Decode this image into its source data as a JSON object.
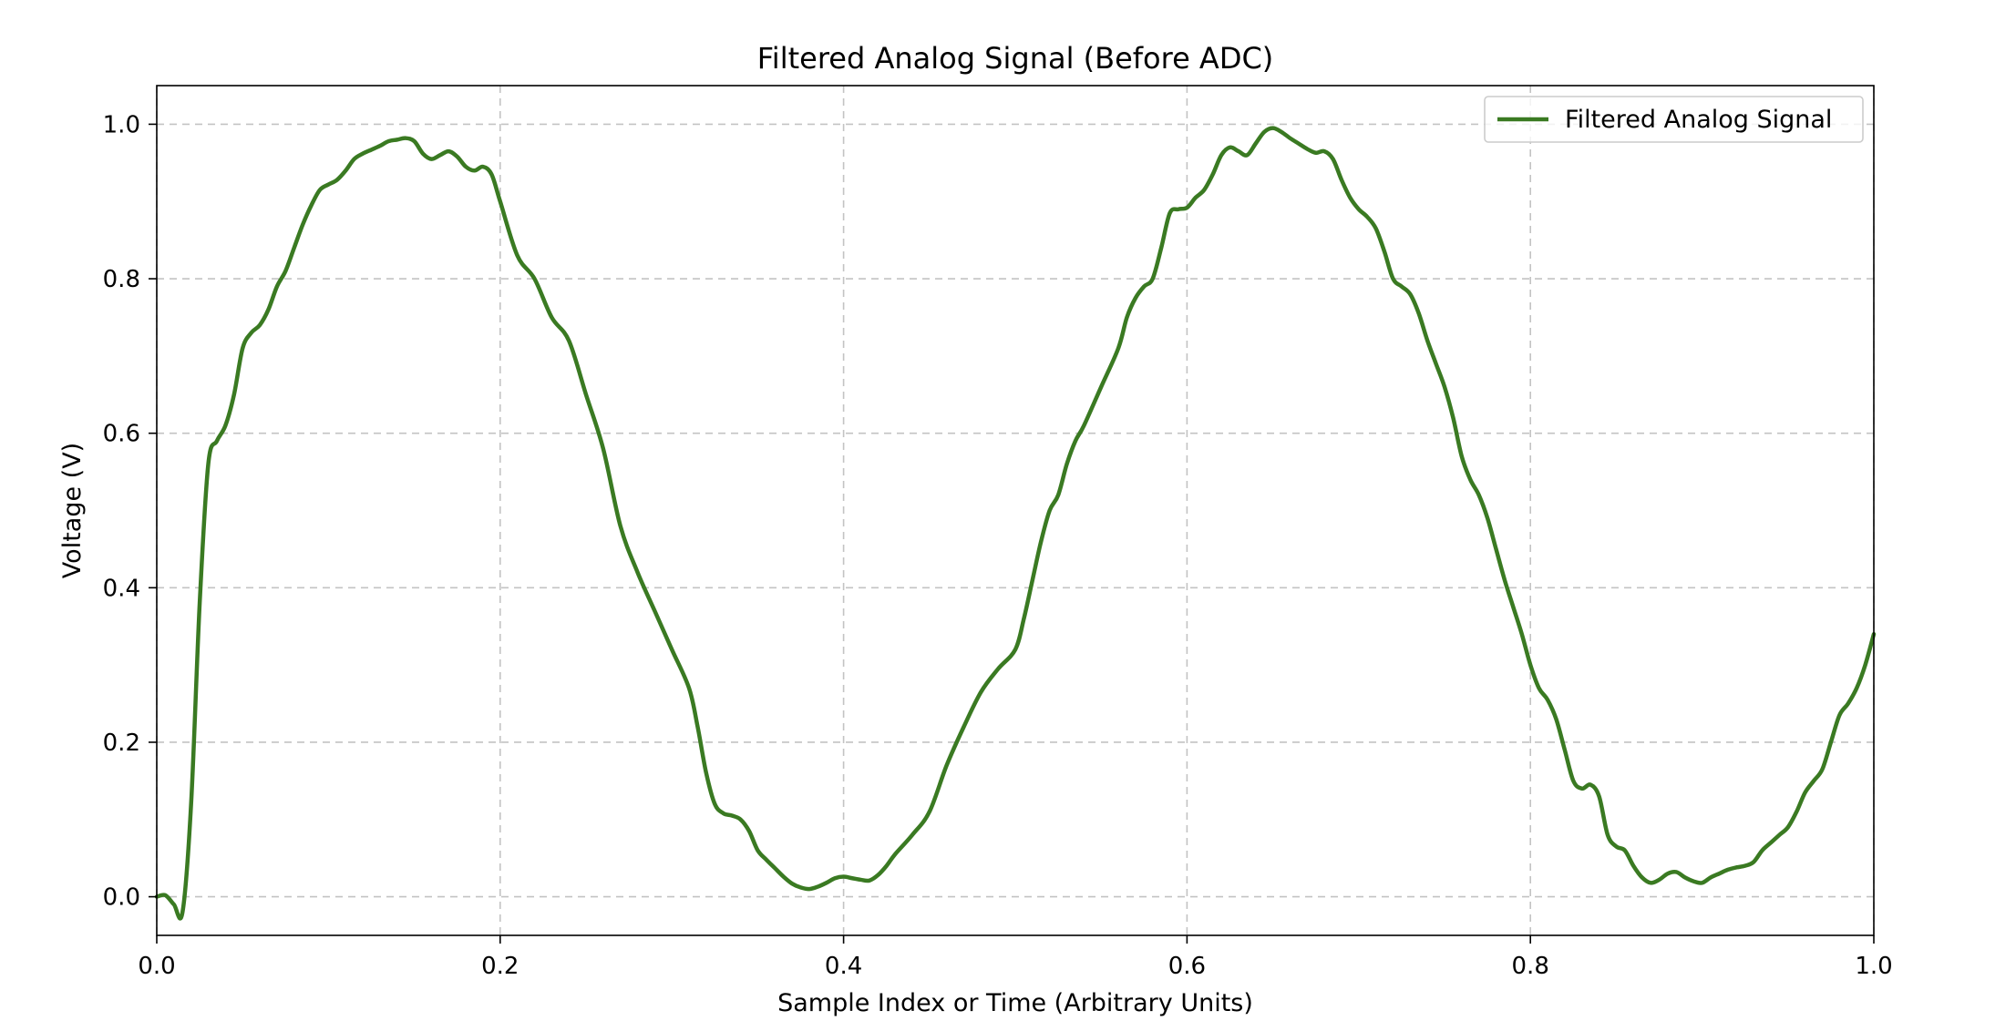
{
  "chart_data": {
    "type": "line",
    "title": "Filtered Analog Signal (Before ADC)",
    "xlabel": "Sample Index or Time (Arbitrary Units)",
    "ylabel": "Voltage (V)",
    "xlim": [
      0.0,
      1.0
    ],
    "ylim": [
      -0.05,
      1.05
    ],
    "xticks": [
      0.0,
      0.2,
      0.4,
      0.6,
      0.8,
      1.0
    ],
    "xtick_labels": [
      "0.0",
      "0.2",
      "0.4",
      "0.6",
      "0.8",
      "1.0"
    ],
    "yticks": [
      0.0,
      0.2,
      0.4,
      0.6,
      0.8,
      1.0
    ],
    "ytick_labels": [
      "0.0",
      "0.2",
      "0.4",
      "0.6",
      "0.8",
      "1.0"
    ],
    "grid": true,
    "legend_position": "top-right",
    "series": [
      {
        "name": "Filtered Analog Signal",
        "color": "#3a7a22",
        "x": [
          0.0,
          0.005,
          0.01,
          0.015,
          0.02,
          0.025,
          0.03,
          0.035,
          0.04,
          0.045,
          0.05,
          0.055,
          0.06,
          0.065,
          0.07,
          0.075,
          0.08,
          0.085,
          0.09,
          0.095,
          0.1,
          0.105,
          0.11,
          0.115,
          0.12,
          0.125,
          0.13,
          0.135,
          0.14,
          0.145,
          0.15,
          0.155,
          0.16,
          0.165,
          0.17,
          0.175,
          0.18,
          0.185,
          0.19,
          0.195,
          0.2,
          0.21,
          0.22,
          0.23,
          0.24,
          0.25,
          0.26,
          0.27,
          0.28,
          0.29,
          0.3,
          0.31,
          0.315,
          0.32,
          0.325,
          0.33,
          0.335,
          0.34,
          0.345,
          0.35,
          0.355,
          0.36,
          0.365,
          0.37,
          0.375,
          0.38,
          0.385,
          0.39,
          0.395,
          0.4,
          0.405,
          0.41,
          0.415,
          0.42,
          0.425,
          0.43,
          0.44,
          0.45,
          0.46,
          0.47,
          0.48,
          0.49,
          0.5,
          0.505,
          0.51,
          0.515,
          0.52,
          0.525,
          0.53,
          0.535,
          0.54,
          0.55,
          0.56,
          0.565,
          0.57,
          0.575,
          0.58,
          0.585,
          0.59,
          0.595,
          0.6,
          0.605,
          0.61,
          0.615,
          0.62,
          0.625,
          0.63,
          0.635,
          0.64,
          0.645,
          0.65,
          0.655,
          0.66,
          0.665,
          0.67,
          0.675,
          0.68,
          0.685,
          0.69,
          0.695,
          0.7,
          0.705,
          0.71,
          0.715,
          0.72,
          0.725,
          0.73,
          0.735,
          0.74,
          0.745,
          0.75,
          0.755,
          0.76,
          0.765,
          0.77,
          0.775,
          0.78,
          0.785,
          0.79,
          0.795,
          0.8,
          0.805,
          0.81,
          0.815,
          0.82,
          0.825,
          0.83,
          0.835,
          0.84,
          0.845,
          0.85,
          0.855,
          0.86,
          0.865,
          0.87,
          0.875,
          0.88,
          0.885,
          0.89,
          0.895,
          0.9,
          0.905,
          0.91,
          0.915,
          0.92,
          0.925,
          0.93,
          0.935,
          0.94,
          0.945,
          0.95,
          0.955,
          0.96,
          0.965,
          0.97,
          0.975,
          0.98,
          0.985,
          0.99,
          0.995,
          1.0
        ],
        "y": [
          0.0,
          0.002,
          -0.01,
          -0.02,
          0.12,
          0.38,
          0.56,
          0.59,
          0.61,
          0.65,
          0.71,
          0.73,
          0.74,
          0.76,
          0.79,
          0.81,
          0.84,
          0.87,
          0.895,
          0.915,
          0.922,
          0.928,
          0.94,
          0.955,
          0.962,
          0.967,
          0.972,
          0.978,
          0.98,
          0.982,
          0.978,
          0.962,
          0.955,
          0.96,
          0.965,
          0.958,
          0.945,
          0.94,
          0.945,
          0.935,
          0.9,
          0.83,
          0.8,
          0.75,
          0.72,
          0.65,
          0.58,
          0.48,
          0.42,
          0.37,
          0.32,
          0.27,
          0.22,
          0.16,
          0.12,
          0.108,
          0.105,
          0.1,
          0.085,
          0.06,
          0.048,
          0.037,
          0.026,
          0.017,
          0.012,
          0.01,
          0.013,
          0.018,
          0.024,
          0.026,
          0.024,
          0.022,
          0.021,
          0.028,
          0.04,
          0.055,
          0.08,
          0.11,
          0.17,
          0.22,
          0.265,
          0.295,
          0.32,
          0.36,
          0.41,
          0.46,
          0.5,
          0.52,
          0.56,
          0.59,
          0.61,
          0.66,
          0.71,
          0.75,
          0.775,
          0.79,
          0.8,
          0.84,
          0.885,
          0.89,
          0.892,
          0.905,
          0.915,
          0.935,
          0.96,
          0.97,
          0.965,
          0.96,
          0.975,
          0.99,
          0.995,
          0.99,
          0.982,
          0.975,
          0.968,
          0.963,
          0.965,
          0.955,
          0.928,
          0.905,
          0.89,
          0.88,
          0.865,
          0.835,
          0.8,
          0.79,
          0.78,
          0.755,
          0.72,
          0.69,
          0.66,
          0.62,
          0.57,
          0.54,
          0.52,
          0.49,
          0.45,
          0.41,
          0.375,
          0.34,
          0.3,
          0.27,
          0.255,
          0.23,
          0.19,
          0.15,
          0.14,
          0.145,
          0.13,
          0.08,
          0.065,
          0.06,
          0.04,
          0.025,
          0.018,
          0.022,
          0.03,
          0.032,
          0.025,
          0.02,
          0.018,
          0.025,
          0.03,
          0.035,
          0.038,
          0.04,
          0.045,
          0.06,
          0.07,
          0.08,
          0.09,
          0.11,
          0.135,
          0.15,
          0.165,
          0.2,
          0.235,
          0.25,
          0.27,
          0.3,
          0.34
        ]
      }
    ]
  }
}
